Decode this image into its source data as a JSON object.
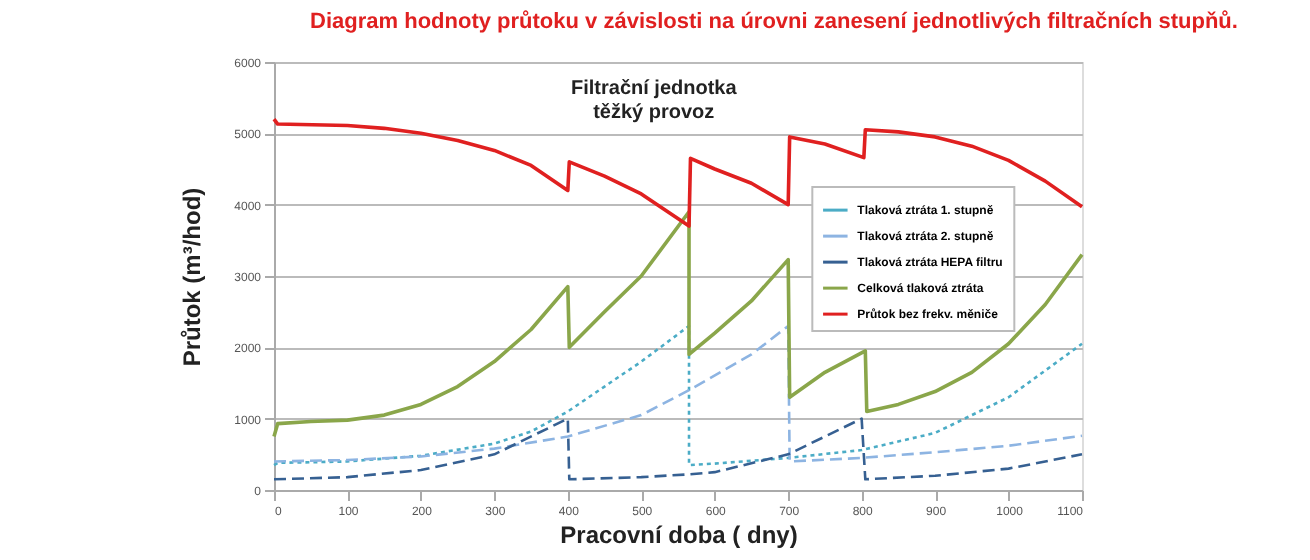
{
  "chart_data": {
    "type": "line",
    "title": "Diagram hodnoty průtoku v závislosti na úrovni zanesení jednotlivých filtračních stupňů.",
    "subtitle": "Filtrační jednotka\ntěžký provoz",
    "xlabel": "Pracovní doba  ( dny)",
    "ylabel": "Průtok (m³/hod)",
    "xlim": [
      0,
      1100
    ],
    "xticks": [
      0,
      100,
      200,
      300,
      400,
      500,
      600,
      700,
      800,
      900,
      1000,
      1100
    ],
    "ylim": [
      0,
      6000
    ],
    "yticks": [
      0,
      1000,
      2000,
      3000,
      4000,
      5000,
      6000
    ],
    "grid": "y",
    "legend": "right",
    "marker": "none",
    "series": [
      {
        "name": "Tlaková ztráta 1. stupně",
        "color": "#4bacc6",
        "line_style": "dotted",
        "x": [
          0,
          5,
          100,
          200,
          300,
          350,
          400,
          450,
          500,
          565,
          565,
          600,
          700,
          800,
          900,
          1000,
          1100
        ],
        "values": [
          350,
          380,
          400,
          480,
          650,
          820,
          1100,
          1450,
          1800,
          2300,
          350,
          370,
          450,
          560,
          800,
          1300,
          2050
        ]
      },
      {
        "name": "Tlaková ztráta 2. stupně",
        "color": "#8db4e2",
        "line_style": "dashed",
        "x": [
          0,
          100,
          200,
          300,
          400,
          500,
          565,
          650,
          700,
          702,
          800,
          900,
          1000,
          1100
        ],
        "values": [
          400,
          420,
          470,
          580,
          750,
          1050,
          1400,
          1900,
          2300,
          400,
          450,
          530,
          620,
          760
        ]
      },
      {
        "name": "Tlaková ztráta HEPA filtru",
        "color": "#366092",
        "line_style": "dashed",
        "x": [
          0,
          100,
          200,
          300,
          400,
          402,
          500,
          565,
          600,
          700,
          800,
          805,
          900,
          1000,
          1100
        ],
        "values": [
          150,
          180,
          280,
          500,
          1000,
          150,
          180,
          220,
          250,
          500,
          1000,
          150,
          200,
          300,
          500
        ]
      },
      {
        "name": "Celková tlaková ztráta",
        "color": "#8aa64a",
        "line_style": "solid",
        "x": [
          0,
          5,
          50,
          100,
          150,
          200,
          250,
          300,
          350,
          400,
          402,
          450,
          500,
          565,
          565,
          600,
          650,
          700,
          702,
          750,
          805,
          807,
          850,
          900,
          950,
          1000,
          1050,
          1100
        ],
        "values": [
          750,
          930,
          960,
          980,
          1050,
          1200,
          1450,
          1800,
          2250,
          2850,
          2000,
          2500,
          3000,
          3900,
          1900,
          2200,
          2650,
          3230,
          1300,
          1650,
          1950,
          1100,
          1200,
          1380,
          1650,
          2050,
          2600,
          3300
        ]
      },
      {
        "name": "Průtok bez frekv. měniče",
        "color": "#e02020",
        "line_style": "solid",
        "x": [
          0,
          5,
          100,
          150,
          200,
          250,
          300,
          350,
          400,
          402,
          450,
          500,
          565,
          567,
          600,
          650,
          700,
          702,
          750,
          803,
          805,
          850,
          900,
          950,
          1000,
          1050,
          1100
        ],
        "values": [
          5200,
          5130,
          5110,
          5070,
          5000,
          4900,
          4760,
          4550,
          4200,
          4600,
          4400,
          4150,
          3700,
          4650,
          4500,
          4300,
          4000,
          4950,
          4850,
          4660,
          5050,
          5020,
          4950,
          4820,
          4620,
          4330,
          3970
        ]
      }
    ]
  }
}
